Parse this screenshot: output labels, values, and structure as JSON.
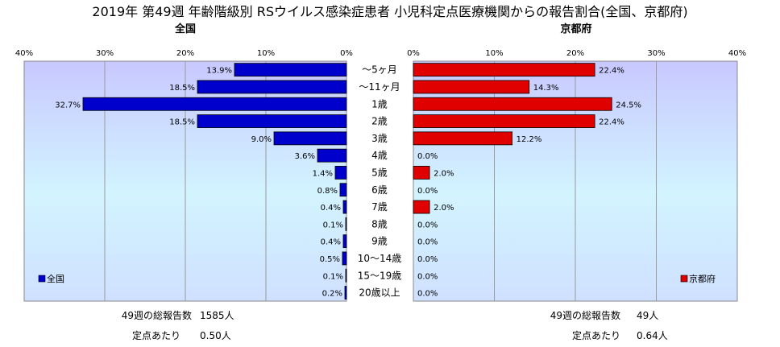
{
  "chart_data": {
    "type": "bar",
    "title": "2019年 第49週 年齢階級別 RSウイルス感染症患者 小児科定点医療機関からの報告割合(全国、京都府)",
    "categories": [
      "～5ヶ月",
      "～11ヶ月",
      "1歳",
      "2歳",
      "3歳",
      "4歳",
      "5歳",
      "6歳",
      "7歳",
      "8歳",
      "9歳",
      "10～14歳",
      "15～19歳",
      "20歳以上"
    ],
    "xlim": [
      0,
      40
    ],
    "tick_labels": [
      "40%",
      "30%",
      "20%",
      "10%",
      "0%"
    ],
    "right_tick_labels": [
      "0%",
      "10%",
      "20%",
      "30%",
      "40%"
    ],
    "series": [
      {
        "name": "全国",
        "subtitle": "全国",
        "color": "#0000cc",
        "values": [
          13.9,
          18.5,
          32.7,
          18.5,
          9.0,
          3.6,
          1.4,
          0.8,
          0.4,
          0.1,
          0.4,
          0.5,
          0.1,
          0.2
        ],
        "labels": [
          "13.9%",
          "18.5%",
          "32.7%",
          "18.5%",
          "9.0%",
          "3.6%",
          "1.4%",
          "0.8%",
          "0.4%",
          "0.1%",
          "0.4%",
          "0.5%",
          "0.1%",
          "0.2%"
        ]
      },
      {
        "name": "京都府",
        "subtitle": "京都府",
        "color": "#e00000",
        "values": [
          22.4,
          14.3,
          24.5,
          22.4,
          12.2,
          0.0,
          2.0,
          0.0,
          2.0,
          0.0,
          0.0,
          0.0,
          0.0,
          0.0
        ],
        "labels": [
          "22.4%",
          "14.3%",
          "24.5%",
          "22.4%",
          "12.2%",
          "0.0%",
          "2.0%",
          "0.0%",
          "2.0%",
          "0.0%",
          "0.0%",
          "0.0%",
          "0.0%",
          "0.0%"
        ]
      }
    ],
    "grid": true,
    "legend": "bottom-left (全国), bottom-right (京都府)"
  },
  "footer": {
    "left": {
      "total_label": "49週の総報告数",
      "total_value": "1585人",
      "per_label": "定点あたり",
      "per_value": "0.50人"
    },
    "right": {
      "total_label": "49週の総報告数",
      "total_value": "49人",
      "per_label": "定点あたり",
      "per_value": "0.64人"
    }
  }
}
